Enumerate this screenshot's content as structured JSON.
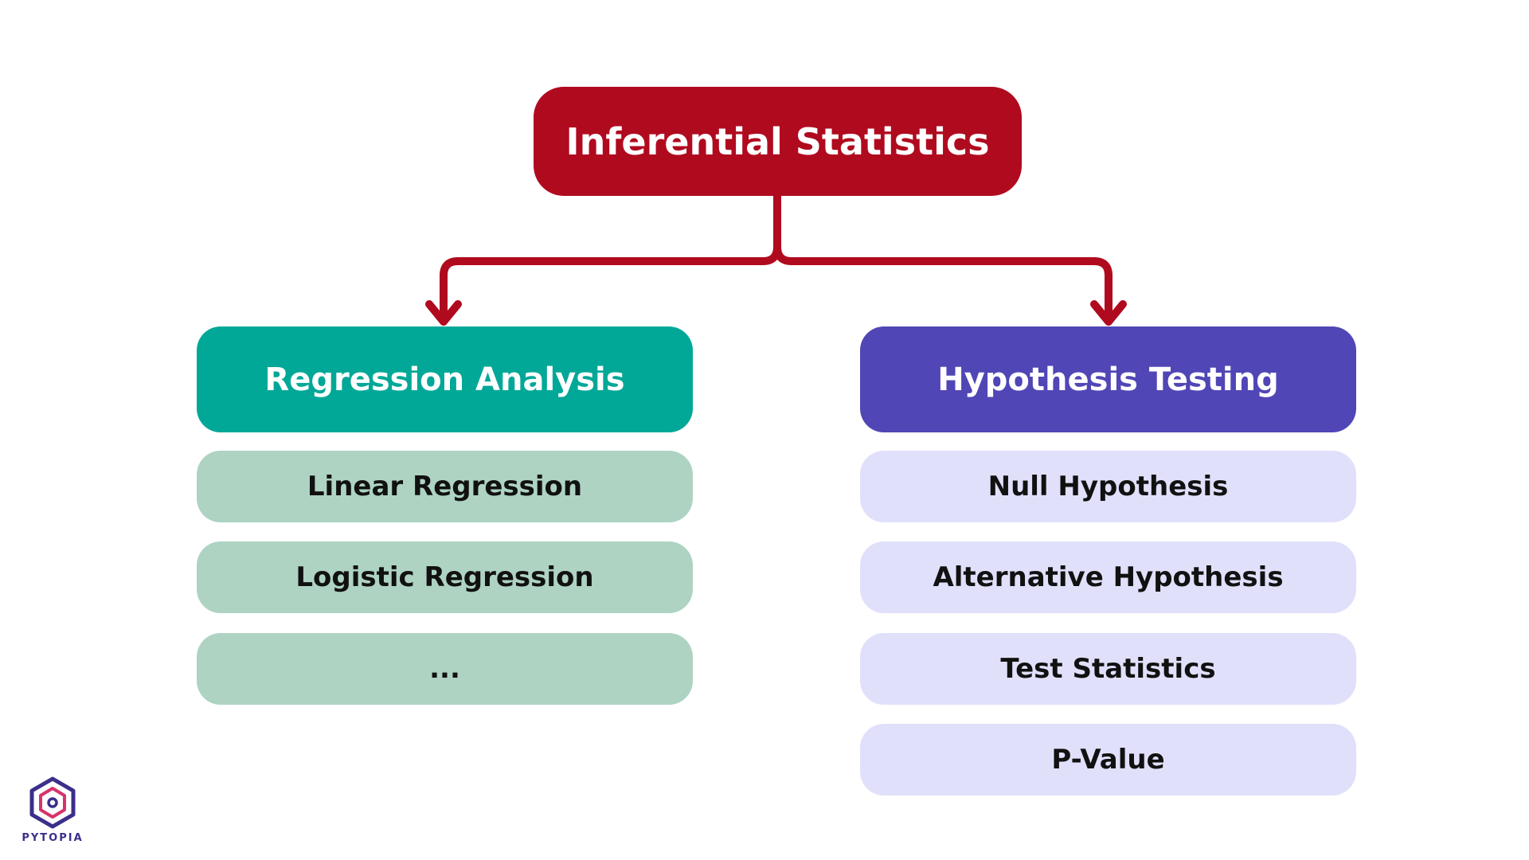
{
  "colors": {
    "root": "#b00a1f",
    "connector": "#b00a1f",
    "left_header": "#02a897",
    "left_item": "#aed3c3",
    "right_header": "#5046b6",
    "right_item": "#e0e0fb",
    "logo_primary": "#3a2f8a",
    "logo_accent": "#d6336c"
  },
  "root": {
    "label": "Inferential Statistics"
  },
  "left_branch": {
    "label": "Regression Analysis",
    "items": [
      "Linear Regression",
      "Logistic Regression",
      "..."
    ]
  },
  "right_branch": {
    "label": "Hypothesis Testing",
    "items": [
      "Null Hypothesis",
      "Alternative Hypothesis",
      "Test Statistics",
      "P-Value"
    ]
  },
  "logo": {
    "icon": "pytopia-hexagon-icon",
    "text": "PYTOPIA"
  }
}
